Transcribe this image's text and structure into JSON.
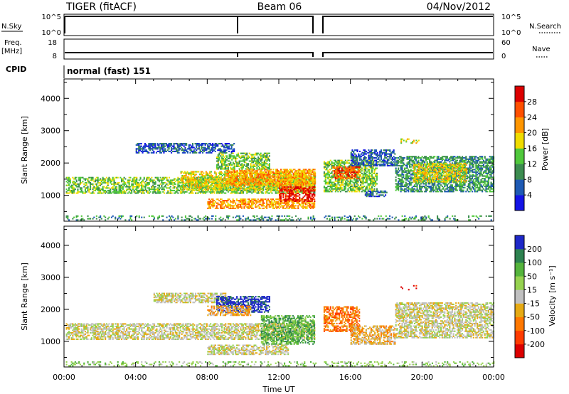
{
  "header": {
    "station": "TIGER (fitACF)",
    "beam": "Beam 06",
    "date": "04/Nov/2012"
  },
  "strips": {
    "nsky": {
      "label": "N.Sky",
      "ticks": [
        "10^5",
        "10^0"
      ]
    },
    "nsearch": {
      "label": "N.Search",
      "ticks": [
        "10^5",
        "10^0"
      ]
    },
    "freq": {
      "label_line1": "Freq.",
      "label_line2": "[MHz]",
      "ticks": [
        "18",
        "8"
      ]
    },
    "nave": {
      "label": "Nave",
      "ticks": [
        "60",
        "0"
      ]
    },
    "cpid": {
      "label": "CPID",
      "value": "normal (fast) 151"
    }
  },
  "chart_data": [
    {
      "type": "heatmap",
      "name": "power",
      "ylabel": "Slant Range [km]",
      "xlabel": "Time UT",
      "ylim": [
        200,
        4600
      ],
      "yticks": [
        1000,
        2000,
        3000,
        4000
      ],
      "xticks": [
        "00:00",
        "04:00",
        "08:00",
        "12:00",
        "16:00",
        "20:00",
        "00:00"
      ],
      "colorbar": {
        "label": "Power [dB]",
        "ticks": [
          "4",
          "8",
          "12",
          "16",
          "20",
          "24",
          "28"
        ],
        "colors": [
          "#1414e6",
          "#1e5ab4",
          "#3c8c50",
          "#50c83c",
          "#f0dc00",
          "#ff9600",
          "#ff5000",
          "#dc0000"
        ]
      },
      "regions": [
        {
          "t0": 0.1,
          "t1": 14.0,
          "r0": 1050,
          "r1": 1550,
          "level": 3
        },
        {
          "t0": 6.5,
          "t1": 14.0,
          "r0": 1150,
          "r1": 1750,
          "level": 4
        },
        {
          "t0": 9.0,
          "t1": 14.0,
          "r0": 1300,
          "r1": 1800,
          "level": 5
        },
        {
          "t0": 4.0,
          "t1": 9.5,
          "r0": 2300,
          "r1": 2600,
          "level": 1
        },
        {
          "t0": 8.5,
          "t1": 11.5,
          "r0": 1800,
          "r1": 2300,
          "level": 3
        },
        {
          "t0": 8.0,
          "t1": 14.0,
          "r0": 580,
          "r1": 900,
          "level": 5
        },
        {
          "t0": 12.0,
          "t1": 14.0,
          "r0": 800,
          "r1": 1250,
          "level": 7
        },
        {
          "t0": 14.5,
          "t1": 17.5,
          "r0": 1100,
          "r1": 2100,
          "level": 3
        },
        {
          "t0": 15.0,
          "t1": 16.5,
          "r0": 1500,
          "r1": 1900,
          "level": 6
        },
        {
          "t0": 16.0,
          "t1": 18.5,
          "r0": 1900,
          "r1": 2400,
          "level": 1
        },
        {
          "t0": 18.5,
          "t1": 24.0,
          "r0": 1100,
          "r1": 2200,
          "level": 2
        },
        {
          "t0": 19.5,
          "t1": 22.5,
          "r0": 1400,
          "r1": 2000,
          "level": 4
        },
        {
          "t0": 18.8,
          "t1": 19.8,
          "r0": 2600,
          "r1": 2750,
          "level": 4
        },
        {
          "t0": 16.8,
          "t1": 18.0,
          "r0": 950,
          "r1": 1150,
          "level": 1
        },
        {
          "t0": 0.1,
          "t1": 24.0,
          "r0": 220,
          "r1": 380,
          "level": 2
        }
      ]
    },
    {
      "type": "heatmap",
      "name": "velocity",
      "ylabel": "Slant Range [km]",
      "xlabel": "Time UT",
      "ylim": [
        200,
        4600
      ],
      "yticks": [
        1000,
        2000,
        3000,
        4000
      ],
      "xticks": [
        "00:00",
        "04:00",
        "08:00",
        "12:00",
        "16:00",
        "20:00",
        "00:00"
      ],
      "colorbar": {
        "label": "Velocity [m s⁻¹]",
        "ticks": [
          "200",
          "100",
          "50",
          "15",
          "-15",
          "-50",
          "-100",
          "-200"
        ],
        "colors": [
          "#1e28c8",
          "#2d8250",
          "#55b43c",
          "#96d250",
          "#c0c0c0",
          "#e6aa14",
          "#ff7800",
          "#ff3c00",
          "#dc0000"
        ]
      },
      "regions": [
        {
          "t0": 0.1,
          "t1": 14.0,
          "r0": 1050,
          "r1": 1550,
          "level": 4
        },
        {
          "t0": 5.0,
          "t1": 9.0,
          "r0": 2200,
          "r1": 2500,
          "level": 4
        },
        {
          "t0": 8.5,
          "t1": 11.5,
          "r0": 1900,
          "r1": 2400,
          "level": 0
        },
        {
          "t0": 8.0,
          "t1": 10.5,
          "r0": 1800,
          "r1": 2100,
          "level": 5
        },
        {
          "t0": 11.0,
          "t1": 14.0,
          "r0": 900,
          "r1": 1800,
          "level": 2
        },
        {
          "t0": 8.0,
          "t1": 12.5,
          "r0": 580,
          "r1": 900,
          "level": 4
        },
        {
          "t0": 14.5,
          "t1": 16.5,
          "r0": 1300,
          "r1": 2100,
          "level": 6
        },
        {
          "t0": 16.0,
          "t1": 18.5,
          "r0": 900,
          "r1": 1500,
          "level": 5
        },
        {
          "t0": 18.5,
          "t1": 24.0,
          "r0": 1100,
          "r1": 2200,
          "level": 4
        },
        {
          "t0": 18.8,
          "t1": 19.8,
          "r0": 2600,
          "r1": 2750,
          "level": 8
        },
        {
          "t0": 0.1,
          "t1": 24.0,
          "r0": 220,
          "r1": 380,
          "level": 3
        }
      ]
    }
  ]
}
